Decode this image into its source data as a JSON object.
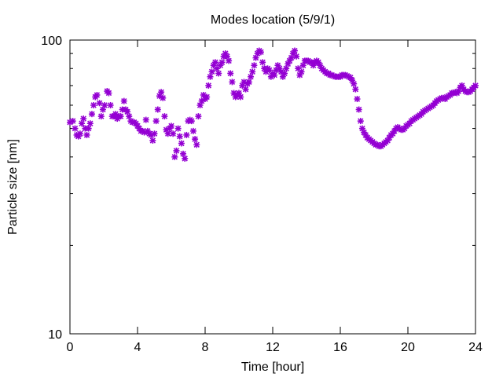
{
  "chart_data": {
    "type": "scatter",
    "title": "Modes location (5/9/1)",
    "xlabel": "Time [hour]",
    "ylabel": "Particle size [nm]",
    "xlim": [
      0,
      24
    ],
    "ylim": [
      10,
      100
    ],
    "yscale": "log",
    "x_ticks": [
      0,
      4,
      8,
      12,
      16,
      20,
      24
    ],
    "x_tick_labels": [
      "0",
      "4",
      "8",
      "12",
      "16",
      "20",
      "24"
    ],
    "y_ticks": [
      10,
      100
    ],
    "y_tick_labels": [
      "10",
      "100"
    ],
    "grid": false,
    "legend": "none",
    "marker_color": "#9400d3",
    "marker": "asterisk",
    "points": [
      [
        0.0,
        52.5
      ],
      [
        0.17,
        53.0
      ],
      [
        0.3,
        50.0
      ],
      [
        0.4,
        47.5
      ],
      [
        0.5,
        47.0
      ],
      [
        0.6,
        48.0
      ],
      [
        0.7,
        52.0
      ],
      [
        0.8,
        54.0
      ],
      [
        0.9,
        50.0
      ],
      [
        1.0,
        47.5
      ],
      [
        1.1,
        50.0
      ],
      [
        1.2,
        52.0
      ],
      [
        1.3,
        56.0
      ],
      [
        1.4,
        60.0
      ],
      [
        1.5,
        64.0
      ],
      [
        1.6,
        65.0
      ],
      [
        1.75,
        61.0
      ],
      [
        1.85,
        55.0
      ],
      [
        1.95,
        58.0
      ],
      [
        2.05,
        60.0
      ],
      [
        2.2,
        67.0
      ],
      [
        2.3,
        66.0
      ],
      [
        2.4,
        60.0
      ],
      [
        2.5,
        55.0
      ],
      [
        2.6,
        55.0
      ],
      [
        2.7,
        56.0
      ],
      [
        2.8,
        54.0
      ],
      [
        2.9,
        55.0
      ],
      [
        3.0,
        55.0
      ],
      [
        3.1,
        58.0
      ],
      [
        3.2,
        62.0
      ],
      [
        3.3,
        58.0
      ],
      [
        3.4,
        57.0
      ],
      [
        3.5,
        55.0
      ],
      [
        3.6,
        53.0
      ],
      [
        3.7,
        52.5
      ],
      [
        3.8,
        52.5
      ],
      [
        3.9,
        52.0
      ],
      [
        4.0,
        51.0
      ],
      [
        4.1,
        50.0
      ],
      [
        4.2,
        49.0
      ],
      [
        4.3,
        49.0
      ],
      [
        4.4,
        48.5
      ],
      [
        4.5,
        53.5
      ],
      [
        4.6,
        49.0
      ],
      [
        4.7,
        48.0
      ],
      [
        4.8,
        47.5
      ],
      [
        4.9,
        45.5
      ],
      [
        5.0,
        48.0
      ],
      [
        5.1,
        53.0
      ],
      [
        5.2,
        58.0
      ],
      [
        5.3,
        64.5
      ],
      [
        5.4,
        66.5
      ],
      [
        5.5,
        63.5
      ],
      [
        5.6,
        55.0
      ],
      [
        5.7,
        49.5
      ],
      [
        5.8,
        48.0
      ],
      [
        5.9,
        50.0
      ],
      [
        6.0,
        51.0
      ],
      [
        6.1,
        48.0
      ],
      [
        6.2,
        40.0
      ],
      [
        6.3,
        42.0
      ],
      [
        6.4,
        50.0
      ],
      [
        6.5,
        47.0
      ],
      [
        6.6,
        44.5
      ],
      [
        6.7,
        41.0
      ],
      [
        6.8,
        39.5
      ],
      [
        6.9,
        47.5
      ],
      [
        7.0,
        53.0
      ],
      [
        7.1,
        53.5
      ],
      [
        7.2,
        53.0
      ],
      [
        7.3,
        49.0
      ],
      [
        7.4,
        46.0
      ],
      [
        7.5,
        44.0
      ],
      [
        7.6,
        55.0
      ],
      [
        7.7,
        60.0
      ],
      [
        7.8,
        62.0
      ],
      [
        7.9,
        65.0
      ],
      [
        8.0,
        63.0
      ],
      [
        8.1,
        64.0
      ],
      [
        8.2,
        70.0
      ],
      [
        8.3,
        75.0
      ],
      [
        8.4,
        78.0
      ],
      [
        8.5,
        82.0
      ],
      [
        8.6,
        84.0
      ],
      [
        8.7,
        80.0
      ],
      [
        8.8,
        77.0
      ],
      [
        8.9,
        82.0
      ],
      [
        9.0,
        84.0
      ],
      [
        9.1,
        88.0
      ],
      [
        9.2,
        90.0
      ],
      [
        9.3,
        88.0
      ],
      [
        9.4,
        85.0
      ],
      [
        9.5,
        77.0
      ],
      [
        9.6,
        72.0
      ],
      [
        9.7,
        66.0
      ],
      [
        9.8,
        64.0
      ],
      [
        9.9,
        65.0
      ],
      [
        10.0,
        66.0
      ],
      [
        10.1,
        64.0
      ],
      [
        10.2,
        70.0
      ],
      [
        10.3,
        72.0
      ],
      [
        10.4,
        68.0
      ],
      [
        10.5,
        71.0
      ],
      [
        10.6,
        72.0
      ],
      [
        10.7,
        75.0
      ],
      [
        10.8,
        78.0
      ],
      [
        10.9,
        82.0
      ],
      [
        11.0,
        87.0
      ],
      [
        11.1,
        90.0
      ],
      [
        11.2,
        92.0
      ],
      [
        11.3,
        91.0
      ],
      [
        11.4,
        84.0
      ],
      [
        11.5,
        80.0
      ],
      [
        11.6,
        78.0
      ],
      [
        11.7,
        80.0
      ],
      [
        11.8,
        79.0
      ],
      [
        11.9,
        75.0
      ],
      [
        12.0,
        77.0
      ],
      [
        12.1,
        76.0
      ],
      [
        12.2,
        79.0
      ],
      [
        12.3,
        82.0
      ],
      [
        12.4,
        80.0
      ],
      [
        12.5,
        78.0
      ],
      [
        12.6,
        75.0
      ],
      [
        12.7,
        77.0
      ],
      [
        12.8,
        80.0
      ],
      [
        12.9,
        83.0
      ],
      [
        13.0,
        85.0
      ],
      [
        13.1,
        87.0
      ],
      [
        13.2,
        90.0
      ],
      [
        13.3,
        92.0
      ],
      [
        13.4,
        88.0
      ],
      [
        13.5,
        80.0
      ],
      [
        13.6,
        76.0
      ],
      [
        13.7,
        78.0
      ],
      [
        13.8,
        82.0
      ],
      [
        13.9,
        85.0
      ],
      [
        14.0,
        85.0
      ],
      [
        14.1,
        85.0
      ],
      [
        14.2,
        84.0
      ],
      [
        14.3,
        84.0
      ],
      [
        14.4,
        82.0
      ],
      [
        14.5,
        84.0
      ],
      [
        14.6,
        85.0
      ],
      [
        14.7,
        84.0
      ],
      [
        14.8,
        82.0
      ],
      [
        14.9,
        80.0
      ],
      [
        15.0,
        79.0
      ],
      [
        15.1,
        78.0
      ],
      [
        15.2,
        77.0
      ],
      [
        15.3,
        77.0
      ],
      [
        15.4,
        76.0
      ],
      [
        15.5,
        76.0
      ],
      [
        15.6,
        75.5
      ],
      [
        15.7,
        75.0
      ],
      [
        15.8,
        75.0
      ],
      [
        15.9,
        75.0
      ],
      [
        16.0,
        75.0
      ],
      [
        16.1,
        76.0
      ],
      [
        16.2,
        76.0
      ],
      [
        16.3,
        76.0
      ],
      [
        16.4,
        75.5
      ],
      [
        16.5,
        75.0
      ],
      [
        16.6,
        74.5
      ],
      [
        16.7,
        73.0
      ],
      [
        16.8,
        71.0
      ],
      [
        16.9,
        68.0
      ],
      [
        17.0,
        63.0
      ],
      [
        17.1,
        58.0
      ],
      [
        17.2,
        53.0
      ],
      [
        17.3,
        50.0
      ],
      [
        17.4,
        48.5
      ],
      [
        17.5,
        47.5
      ],
      [
        17.6,
        46.5
      ],
      [
        17.7,
        46.0
      ],
      [
        17.8,
        45.5
      ],
      [
        17.9,
        45.0
      ],
      [
        18.0,
        44.5
      ],
      [
        18.1,
        44.0
      ],
      [
        18.2,
        44.0
      ],
      [
        18.3,
        43.5
      ],
      [
        18.4,
        43.5
      ],
      [
        18.5,
        44.0
      ],
      [
        18.6,
        44.5
      ],
      [
        18.7,
        45.0
      ],
      [
        18.8,
        45.5
      ],
      [
        18.9,
        46.5
      ],
      [
        19.0,
        47.5
      ],
      [
        19.1,
        48.0
      ],
      [
        19.2,
        49.0
      ],
      [
        19.3,
        50.0
      ],
      [
        19.4,
        50.5
      ],
      [
        19.5,
        50.0
      ],
      [
        19.6,
        49.5
      ],
      [
        19.7,
        49.5
      ],
      [
        19.8,
        50.0
      ],
      [
        19.9,
        51.0
      ],
      [
        20.0,
        51.5
      ],
      [
        20.1,
        52.0
      ],
      [
        20.2,
        53.0
      ],
      [
        20.3,
        53.5
      ],
      [
        20.4,
        54.0
      ],
      [
        20.5,
        54.5
      ],
      [
        20.6,
        55.0
      ],
      [
        20.7,
        55.5
      ],
      [
        20.8,
        56.0
      ],
      [
        20.9,
        57.0
      ],
      [
        21.0,
        57.5
      ],
      [
        21.1,
        58.0
      ],
      [
        21.2,
        58.5
      ],
      [
        21.3,
        59.0
      ],
      [
        21.4,
        59.5
      ],
      [
        21.5,
        60.0
      ],
      [
        21.6,
        61.0
      ],
      [
        21.7,
        62.0
      ],
      [
        21.8,
        62.5
      ],
      [
        21.9,
        63.0
      ],
      [
        22.0,
        63.5
      ],
      [
        22.1,
        63.5
      ],
      [
        22.2,
        63.0
      ],
      [
        22.3,
        64.0
      ],
      [
        22.4,
        64.5
      ],
      [
        22.5,
        65.0
      ],
      [
        22.6,
        66.0
      ],
      [
        22.7,
        66.0
      ],
      [
        22.8,
        66.5
      ],
      [
        22.9,
        66.0
      ],
      [
        23.0,
        67.0
      ],
      [
        23.1,
        69.0
      ],
      [
        23.2,
        70.0
      ],
      [
        23.3,
        68.0
      ],
      [
        23.4,
        67.0
      ],
      [
        23.5,
        66.5
      ],
      [
        23.6,
        66.5
      ],
      [
        23.7,
        67.0
      ],
      [
        23.8,
        68.0
      ],
      [
        23.9,
        69.0
      ],
      [
        24.0,
        70.0
      ]
    ]
  }
}
